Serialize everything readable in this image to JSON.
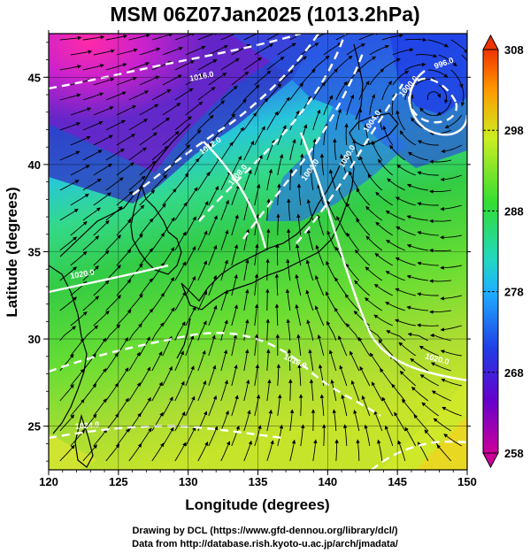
{
  "title": "MSM 06Z07Jan2025 (1013.2hPa)",
  "axes": {
    "xlabel": "Longitude (degrees)",
    "ylabel": "Latitude  (degrees)",
    "x_ticks": [
      "120",
      "125",
      "130",
      "135",
      "140",
      "145",
      "150"
    ],
    "y_ticks": [
      "25",
      "30",
      "35",
      "40",
      "45"
    ],
    "xlim": [
      120,
      150
    ],
    "ylim": [
      22.5,
      47.5
    ]
  },
  "colorbar": {
    "ticks": [
      "308",
      "298",
      "288",
      "278",
      "268",
      "258"
    ],
    "range": [
      258,
      308
    ],
    "colors": [
      "#cc0099",
      "#6600cc",
      "#1f3fe6",
      "#1fb0ff",
      "#22d8c0",
      "#33dd33",
      "#ccee22",
      "#ff9900",
      "#ee3300"
    ]
  },
  "isobar_labels": [
    "1016.0",
    "1012.0",
    "1008.0",
    "1004.0",
    "1000.0",
    "996.0",
    "1020.0",
    "1024.0",
    "1016.0",
    "1020.0",
    "1000.0",
    "1004.0"
  ],
  "credits": {
    "line1": "Drawing by DCL (https://www.gfd-dennou.org/library/dcl/)",
    "line2": "Data from http://database.rish.kyoto-u.ac.jp/arch/jmadata/"
  }
}
